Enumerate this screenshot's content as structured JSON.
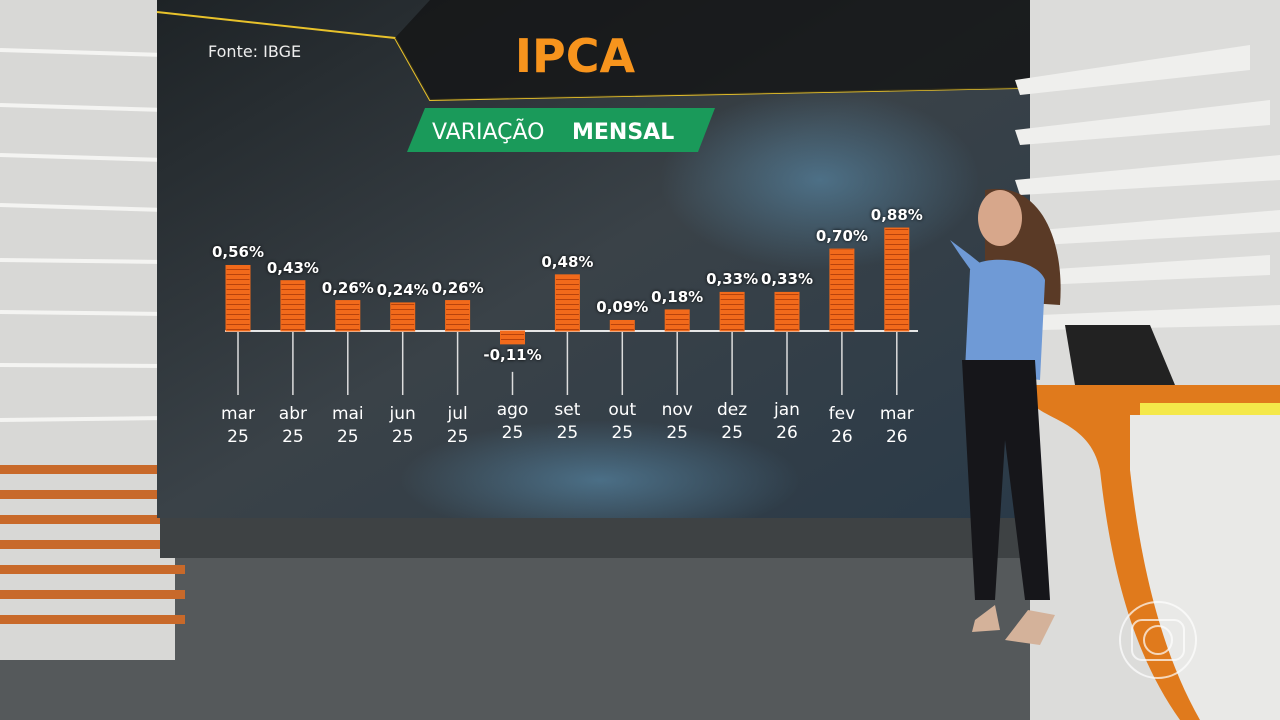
{
  "chart_data": {
    "type": "bar",
    "title": "IPCA",
    "subtitle": [
      "VARIAÇÃO",
      "MENSAL"
    ],
    "source": "Fonte: IBGE",
    "categories": [
      "mar 25",
      "abr 25",
      "mai 25",
      "jun 25",
      "jul 25",
      "ago 25",
      "set 25",
      "out 25",
      "nov 25",
      "dez 25",
      "jan 26",
      "fev 26",
      "mar 26"
    ],
    "values": [
      0.56,
      0.43,
      0.26,
      0.24,
      0.26,
      -0.11,
      0.48,
      0.09,
      0.18,
      0.33,
      0.33,
      0.7,
      0.88
    ],
    "value_labels": [
      "0,56%",
      "0,43%",
      "0,26%",
      "0,24%",
      "0,26%",
      "-0,11%",
      "0,48%",
      "0,09%",
      "0,18%",
      "0,33%",
      "0,33%",
      "0,70%",
      "0,88%"
    ],
    "color": "#f26a1b"
  }
}
